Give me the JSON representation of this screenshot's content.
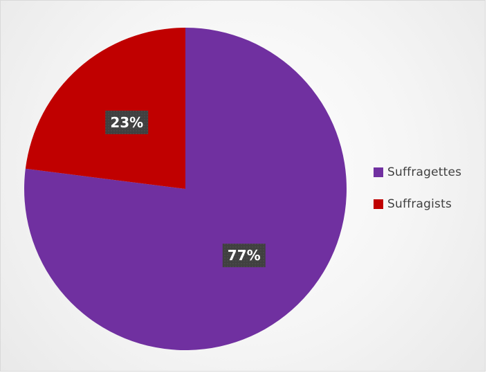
{
  "chart_data": {
    "type": "pie",
    "title": "",
    "categories": [
      "Suffragettes",
      "Suffragists"
    ],
    "values": [
      77,
      23
    ],
    "data_labels": [
      "77%",
      "23%"
    ],
    "colors": [
      "#7030a0",
      "#c00000"
    ],
    "legend_position": "right",
    "label_box_color": "#404040",
    "label_text_color": "#ffffff"
  }
}
